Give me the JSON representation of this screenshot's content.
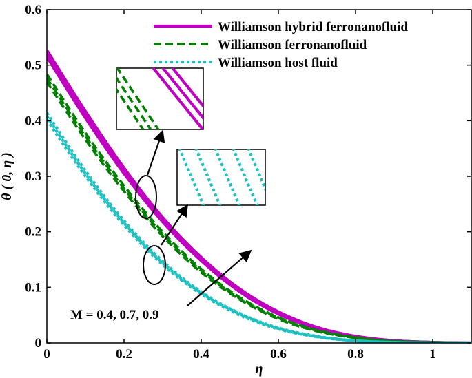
{
  "chart_data": {
    "type": "line",
    "xlabel": "η",
    "ylabel": "θ ( 0, η )",
    "xlim": [
      0,
      1.1
    ],
    "ylim": [
      0,
      0.6
    ],
    "xticks": [
      0,
      0.2,
      0.4,
      0.6,
      0.8,
      1
    ],
    "xtick_labels": [
      "0",
      "0.2",
      "0.4",
      "0.6",
      "0.8",
      "1"
    ],
    "yticks": [
      0,
      0.1,
      0.2,
      0.3,
      0.4,
      0.5,
      0.6
    ],
    "ytick_labels": [
      "0",
      "0.1",
      "0.2",
      "0.3",
      "0.4",
      "0.5",
      "0.6"
    ],
    "grid": false,
    "legend_position": "top-right",
    "M_values": [
      0.4,
      0.7,
      0.9
    ],
    "annotation": "M = 0.4, 0.7, 0.9",
    "x": [
      0,
      0.1,
      0.2,
      0.3,
      0.4,
      0.5,
      0.6,
      0.7,
      0.8,
      0.9,
      1.0,
      1.1
    ],
    "series": [
      {
        "name": "Williamson hybrid ferronanofluid",
        "color": "#c000c0",
        "style": "solid",
        "curves": [
          {
            "M": 0.4,
            "values": [
              0.515,
              0.405,
              0.305,
              0.218,
              0.148,
              0.092,
              0.052,
              0.026,
              0.011,
              0.004,
              0.001,
              0.0
            ]
          },
          {
            "M": 0.7,
            "values": [
              0.521,
              0.411,
              0.31,
              0.222,
              0.151,
              0.094,
              0.054,
              0.027,
              0.012,
              0.004,
              0.001,
              0.0
            ]
          },
          {
            "M": 0.9,
            "values": [
              0.527,
              0.417,
              0.315,
              0.226,
              0.154,
              0.097,
              0.056,
              0.028,
              0.012,
              0.004,
              0.001,
              0.0
            ]
          }
        ]
      },
      {
        "name": "Williamson ferronanofluid",
        "color": "#008000",
        "style": "dashed",
        "curves": [
          {
            "M": 0.4,
            "values": [
              0.47,
              0.366,
              0.273,
              0.192,
              0.127,
              0.078,
              0.043,
              0.021,
              0.009,
              0.003,
              0.001,
              0.0
            ]
          },
          {
            "M": 0.7,
            "values": [
              0.477,
              0.372,
              0.278,
              0.196,
              0.13,
              0.08,
              0.045,
              0.022,
              0.009,
              0.003,
              0.001,
              0.0
            ]
          },
          {
            "M": 0.9,
            "values": [
              0.484,
              0.378,
              0.283,
              0.2,
              0.133,
              0.082,
              0.046,
              0.023,
              0.01,
              0.003,
              0.001,
              0.0
            ]
          }
        ]
      },
      {
        "name": "Williamson host fluid",
        "color": "#1ec0c0",
        "style": "dotted",
        "curves": [
          {
            "M": 0.4,
            "values": [
              0.402,
              0.3,
              0.212,
              0.141,
              0.088,
              0.05,
              0.025,
              0.011,
              0.004,
              0.001,
              0.0,
              0.0
            ]
          },
          {
            "M": 0.7,
            "values": [
              0.408,
              0.305,
              0.216,
              0.144,
              0.09,
              0.052,
              0.026,
              0.011,
              0.004,
              0.001,
              0.0,
              0.0
            ]
          },
          {
            "M": 0.9,
            "values": [
              0.414,
              0.31,
              0.22,
              0.147,
              0.092,
              0.053,
              0.027,
              0.012,
              0.004,
              0.001,
              0.0,
              0.0
            ]
          }
        ]
      }
    ]
  }
}
